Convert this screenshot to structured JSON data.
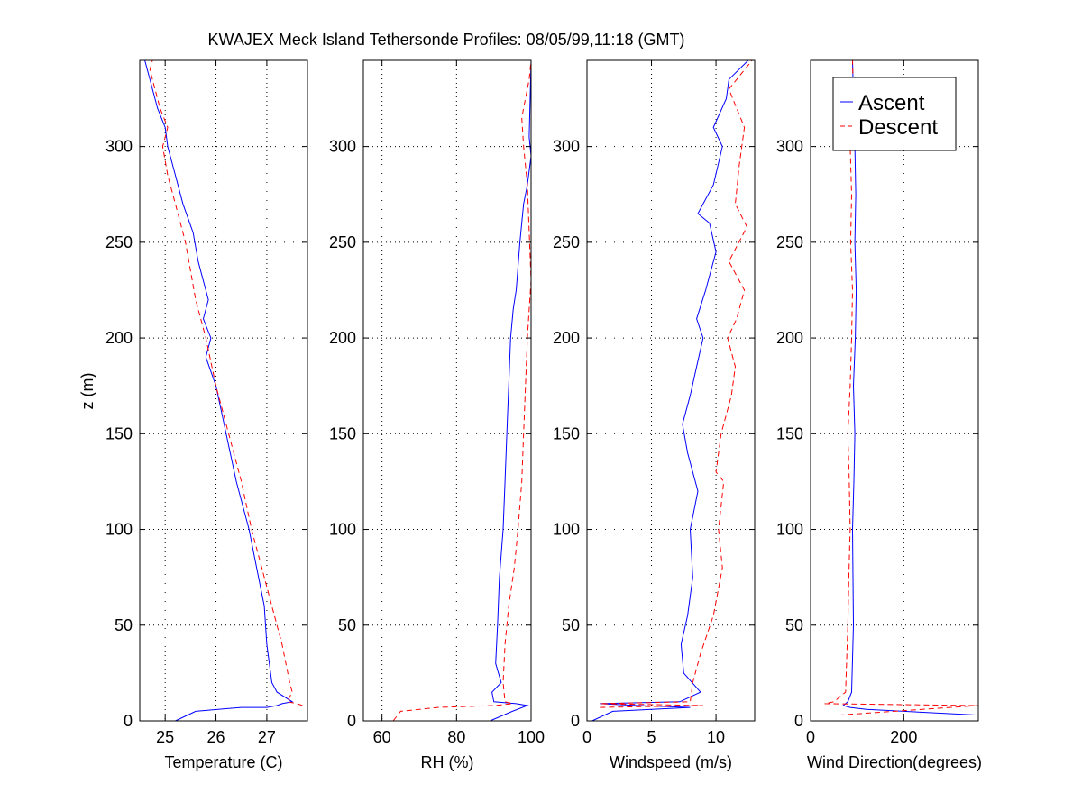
{
  "figure": {
    "title": "KWAJEX Meck Island Tethersonde Profiles: 08/05/99,11:18 (GMT)"
  },
  "colors": {
    "ascent": "#0000ff",
    "descent": "#ff0000",
    "grid": "#000000",
    "background": "#ffffff"
  },
  "legend": {
    "ascent_label": "Ascent",
    "descent_label": "Descent",
    "placement": "top-right of fourth panel"
  },
  "chart_data": [
    {
      "type": "line",
      "xlabel": "Temperature (C)",
      "ylabel": "z (m)",
      "xlim": [
        24.5,
        27.8
      ],
      "ylim": [
        0,
        345
      ],
      "xticks": [
        25,
        26,
        27
      ],
      "yticks": [
        0,
        50,
        100,
        150,
        200,
        250,
        300
      ],
      "grid": true,
      "series": [
        {
          "name": "Ascent",
          "style": "solid",
          "x": [
            25.2,
            25.6,
            26.5,
            27.0,
            27.2,
            27.3,
            27.5,
            27.2,
            27.1,
            27.0,
            26.95,
            26.8,
            26.65,
            26.4,
            26.2,
            26.0,
            25.8,
            25.9,
            25.75,
            25.85,
            25.65,
            25.55,
            25.35,
            25.2,
            25.05,
            25.0,
            24.85,
            24.7,
            24.6
          ],
          "y": [
            0,
            5,
            7,
            7,
            8,
            9,
            10,
            15,
            20,
            40,
            60,
            80,
            100,
            125,
            150,
            175,
            190,
            200,
            210,
            220,
            240,
            255,
            270,
            285,
            300,
            310,
            320,
            335,
            345
          ]
        },
        {
          "name": "Descent",
          "style": "dashed",
          "x": [
            27.7,
            27.6,
            27.4,
            27.5,
            27.45,
            27.3,
            27.1,
            26.9,
            26.7,
            26.5,
            26.25,
            26.0,
            25.8,
            25.6,
            25.4,
            25.2,
            25.05,
            24.95,
            25.05,
            24.9,
            24.8,
            24.7,
            24.75
          ],
          "y": [
            8,
            9,
            10,
            15,
            20,
            40,
            60,
            80,
            100,
            125,
            150,
            175,
            200,
            220,
            250,
            270,
            285,
            300,
            310,
            320,
            330,
            340,
            345
          ]
        }
      ]
    },
    {
      "type": "line",
      "xlabel": "RH (%)",
      "ylabel": "",
      "xlim": [
        55,
        100
      ],
      "ylim": [
        0,
        345
      ],
      "xticks": [
        60,
        80,
        100
      ],
      "yticks": [
        0,
        50,
        100,
        150,
        200,
        250,
        300
      ],
      "grid": true,
      "series": [
        {
          "name": "Ascent",
          "style": "solid",
          "x": [
            89,
            95,
            99,
            96,
            90,
            89.5,
            92,
            90.5,
            91,
            91.5,
            92.5,
            93,
            93.5,
            94,
            94.5,
            95.2,
            96,
            97,
            98,
            99,
            100,
            99.5,
            100
          ],
          "y": [
            0,
            5,
            8,
            9,
            10,
            15,
            20,
            30,
            50,
            75,
            100,
            125,
            150,
            175,
            200,
            215,
            225,
            250,
            270,
            280,
            295,
            305,
            345
          ]
        },
        {
          "name": "Descent",
          "style": "dashed",
          "x": [
            63,
            65,
            75,
            90,
            95,
            93,
            92.5,
            93,
            94,
            95.5,
            96.5,
            97.5,
            98,
            98.5,
            99,
            99.5,
            100,
            99,
            98,
            97.5,
            98,
            99.5,
            100
          ],
          "y": [
            0,
            5,
            7,
            8,
            9,
            10,
            20,
            40,
            60,
            80,
            100,
            125,
            150,
            175,
            200,
            215,
            230,
            280,
            300,
            315,
            320,
            335,
            345
          ]
        }
      ]
    },
    {
      "type": "line",
      "xlabel": "Windspeed (m/s)",
      "ylabel": "",
      "xlim": [
        0,
        13
      ],
      "ylim": [
        0,
        345
      ],
      "xticks": [
        0,
        5,
        10
      ],
      "yticks": [
        0,
        50,
        100,
        150,
        200,
        250,
        300
      ],
      "grid": true,
      "series": [
        {
          "name": "Ascent",
          "style": "solid",
          "x": [
            0.4,
            2,
            8,
            4,
            1,
            7.2,
            8.8,
            7.5,
            7.3,
            7.8,
            8.2,
            8.0,
            8.6,
            7.8,
            7.4,
            8.0,
            8.5,
            9.0,
            8.5,
            9.2,
            10.0,
            9.5,
            8.6,
            9.8,
            10.5,
            9.8,
            10.8,
            11.0,
            12.5
          ],
          "y": [
            0,
            5,
            7,
            8,
            9,
            10,
            15,
            25,
            40,
            55,
            75,
            100,
            120,
            140,
            155,
            170,
            185,
            200,
            210,
            225,
            245,
            260,
            265,
            280,
            300,
            310,
            325,
            335,
            345
          ]
        },
        {
          "name": "Descent",
          "style": "dashed",
          "x": [
            1,
            9,
            1,
            8,
            8.2,
            8.8,
            9.8,
            10.5,
            10.2,
            10.6,
            10.0,
            10.4,
            11.2,
            11.5,
            10.9,
            11.6,
            12.2,
            11.0,
            12.4,
            11.5,
            11.8,
            12.2,
            11.0,
            12.8
          ],
          "y": [
            7,
            8,
            9,
            10,
            20,
            35,
            55,
            80,
            100,
            125,
            130,
            150,
            170,
            185,
            200,
            210,
            225,
            240,
            258,
            270,
            290,
            310,
            330,
            345
          ]
        }
      ]
    },
    {
      "type": "line",
      "xlabel": "Wind Direction(degrees)",
      "ylabel": "",
      "xlim": [
        0,
        360
      ],
      "ylim": [
        0,
        345
      ],
      "xticks": [
        0,
        200
      ],
      "yticks": [
        0,
        50,
        100,
        150,
        200,
        250,
        300
      ],
      "grid": true,
      "series": [
        {
          "name": "Ascent",
          "style": "solid",
          "x": [
            360,
            200,
            120,
            85,
            70,
            80,
            88,
            92,
            90,
            93,
            95,
            92,
            96,
            98,
            95,
            97,
            95,
            92,
            90
          ],
          "y": [
            3,
            5,
            6,
            7,
            8,
            10,
            15,
            50,
            100,
            125,
            150,
            175,
            200,
            225,
            250,
            275,
            300,
            325,
            345
          ]
        },
        {
          "name": "Descent",
          "style": "dashed",
          "x": [
            60,
            360,
            30,
            50,
            75,
            80,
            82,
            85,
            83,
            80,
            85,
            88,
            90,
            86,
            88,
            85,
            92,
            90
          ],
          "y": [
            3,
            8,
            9,
            10,
            15,
            50,
            75,
            100,
            125,
            150,
            175,
            200,
            225,
            250,
            275,
            300,
            325,
            345
          ]
        }
      ]
    }
  ]
}
